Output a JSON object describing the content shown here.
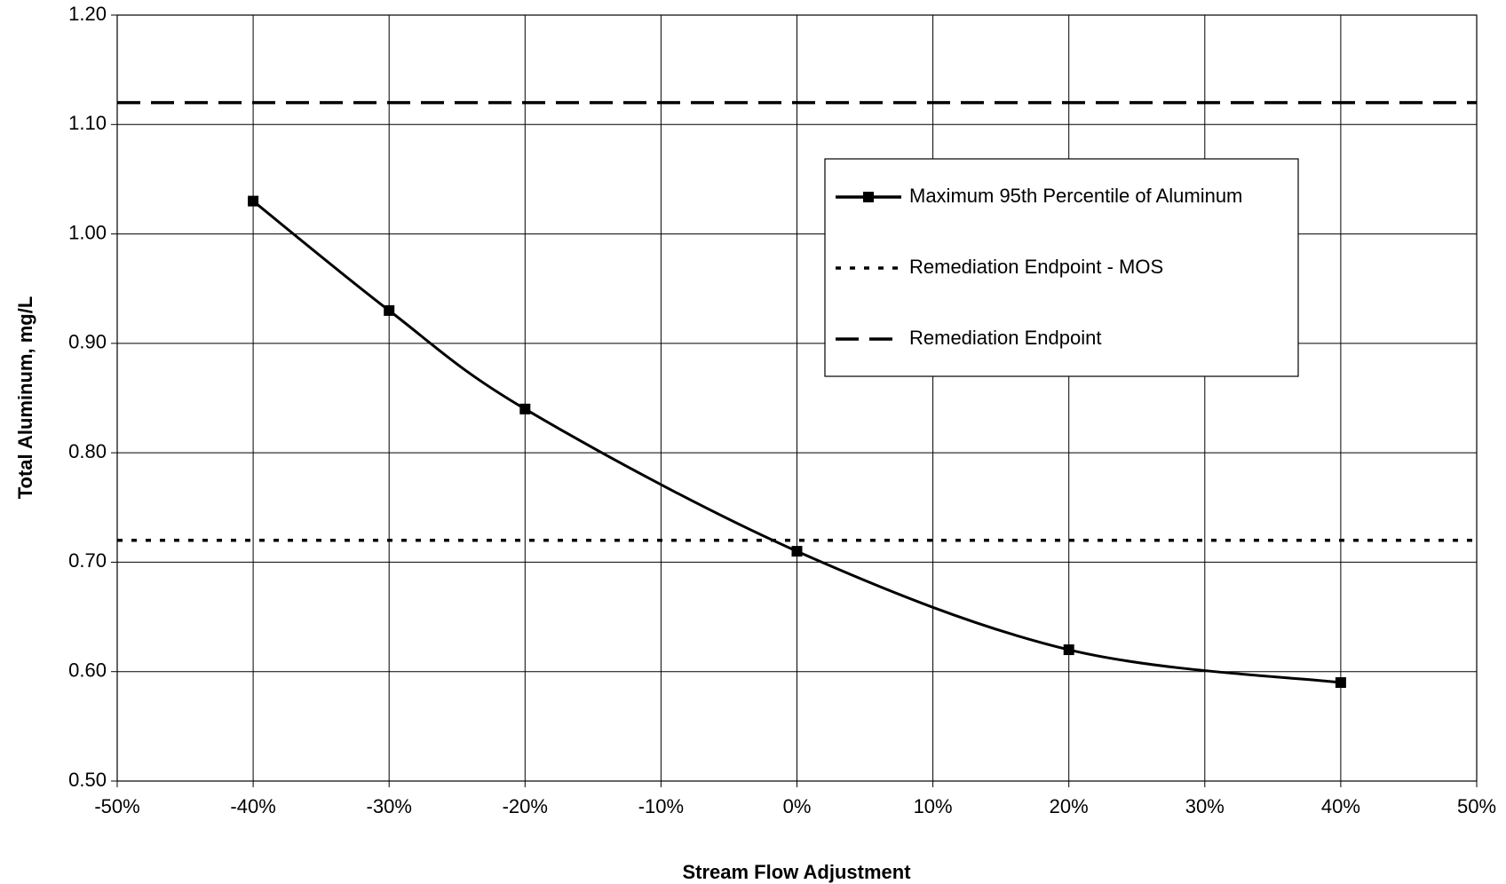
{
  "chart_data": {
    "type": "line",
    "x_label": "Stream Flow Adjustment",
    "y_label": "Total Aluminum, mg/L",
    "series": [
      {
        "name": "Maximum 95th Percentile of Aluminum",
        "color": "#000000",
        "dash": "solid",
        "marker": "square",
        "x": [
          -40,
          -30,
          -20,
          0,
          20,
          40
        ],
        "values": [
          1.03,
          0.93,
          0.84,
          0.71,
          0.62,
          0.59
        ]
      },
      {
        "name": "Remediation Endpoint - MOS",
        "color": "#000000",
        "dash": "dotted",
        "value": 0.72
      },
      {
        "name": "Remediation Endpoint",
        "color": "#000000",
        "dash": "dashed",
        "value": 1.12
      }
    ],
    "xlim": [
      -50,
      50
    ],
    "xticks": [
      {
        "value": -50,
        "label": "-50%"
      },
      {
        "value": -40,
        "label": "-40%"
      },
      {
        "value": -30,
        "label": "-30%"
      },
      {
        "value": -20,
        "label": "-20%"
      },
      {
        "value": -10,
        "label": "-10%"
      },
      {
        "value": 0,
        "label": "0%"
      },
      {
        "value": 10,
        "label": "10%"
      },
      {
        "value": 20,
        "label": "20%"
      },
      {
        "value": 30,
        "label": "30%"
      },
      {
        "value": 40,
        "label": "40%"
      },
      {
        "value": 50,
        "label": "50%"
      }
    ],
    "ylim": [
      0.5,
      1.2
    ],
    "yticks": [
      {
        "value": 0.5,
        "label": "0.50"
      },
      {
        "value": 0.6,
        "label": "0.60"
      },
      {
        "value": 0.7,
        "label": "0.70"
      },
      {
        "value": 0.8,
        "label": "0.80"
      },
      {
        "value": 0.9,
        "label": "0.90"
      },
      {
        "value": 1.0,
        "label": "1.00"
      },
      {
        "value": 1.1,
        "label": "1.10"
      },
      {
        "value": 1.2,
        "label": "1.20"
      }
    ],
    "grid": true,
    "legend_position": "upper right"
  }
}
